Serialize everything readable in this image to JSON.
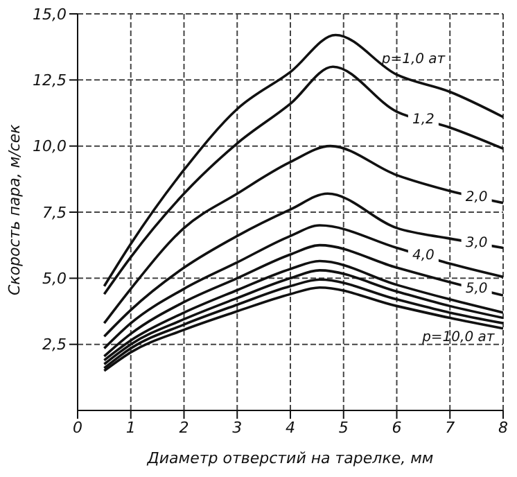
{
  "chart_data": {
    "type": "line",
    "xlabel": "Диаметр отверстий на тарелке, мм",
    "ylabel": "Скорость пара, м/сек",
    "xlim": [
      0,
      8
    ],
    "xticks": [
      0,
      1,
      2,
      3,
      4,
      5,
      6,
      7,
      8
    ],
    "ylim": [
      0,
      15
    ],
    "yticks": [
      {
        "value": 2.5,
        "label": "2,5"
      },
      {
        "value": 5,
        "label": "5,0"
      },
      {
        "value": 7.5,
        "label": "7,5"
      },
      {
        "value": 10,
        "label": "10,0"
      },
      {
        "value": 12.5,
        "label": "12,5"
      },
      {
        "value": 15,
        "label": "15,0"
      }
    ],
    "grid": true,
    "marker": "none",
    "line_style": "solid",
    "series": [
      {
        "name": "р=1,0 ат",
        "color": "#111111",
        "x": [
          0.5,
          1,
          2,
          3,
          4,
          4.85,
          6,
          7,
          8
        ],
        "values": [
          4.7,
          6.3,
          9.1,
          11.4,
          12.8,
          14.2,
          12.7,
          12.05,
          11.1
        ]
      },
      {
        "name": "1,2",
        "color": "#111111",
        "x": [
          0.5,
          1,
          2,
          3,
          4,
          4.8,
          6,
          7,
          8
        ],
        "values": [
          4.4,
          5.8,
          8.2,
          10.1,
          11.6,
          13.0,
          11.3,
          10.7,
          9.9
        ]
      },
      {
        "name": "2,0",
        "color": "#111111",
        "x": [
          0.5,
          1,
          2,
          3,
          4,
          4.75,
          6,
          7,
          8
        ],
        "values": [
          3.3,
          4.6,
          6.9,
          8.2,
          9.4,
          10.0,
          8.9,
          8.3,
          7.85
        ]
      },
      {
        "name": "3,0",
        "color": "#111111",
        "x": [
          0.5,
          1,
          2,
          3,
          4,
          4.7,
          6,
          7,
          8
        ],
        "values": [
          2.8,
          3.8,
          5.4,
          6.6,
          7.6,
          8.2,
          6.9,
          6.5,
          6.15
        ]
      },
      {
        "name": "4,0",
        "color": "#111111",
        "x": [
          0.5,
          1,
          2,
          3,
          4,
          4.55,
          6,
          7,
          8
        ],
        "values": [
          2.35,
          3.3,
          4.6,
          5.6,
          6.6,
          7.0,
          6.15,
          5.55,
          5.05
        ]
      },
      {
        "name": "5,0",
        "color": "#111111",
        "x": [
          0.5,
          1,
          2,
          3,
          4,
          4.55,
          6,
          7,
          8
        ],
        "values": [
          2.05,
          2.9,
          4.1,
          5.0,
          5.9,
          6.25,
          5.4,
          4.85,
          4.35
        ]
      },
      {
        "color": "#111111",
        "x": [
          0.5,
          1,
          2,
          3,
          4,
          4.55,
          6,
          7,
          8
        ],
        "values": [
          1.9,
          2.65,
          3.7,
          4.55,
          5.35,
          5.65,
          4.75,
          4.2,
          3.7
        ]
      },
      {
        "color": "#111111",
        "x": [
          0.5,
          1,
          2,
          3,
          4,
          4.55,
          6,
          7,
          8
        ],
        "values": [
          1.75,
          2.5,
          3.45,
          4.25,
          5.0,
          5.3,
          4.5,
          3.95,
          3.5
        ]
      },
      {
        "color": "#111111",
        "x": [
          0.5,
          1,
          2,
          3,
          4,
          4.55,
          6,
          7,
          8
        ],
        "values": [
          1.6,
          2.35,
          3.25,
          4.0,
          4.7,
          4.95,
          4.2,
          3.7,
          3.3
        ]
      },
      {
        "name": "р=10,0 ат",
        "color": "#111111",
        "x": [
          0.5,
          1,
          2,
          3,
          4,
          4.55,
          6,
          7,
          8
        ],
        "values": [
          1.5,
          2.2,
          3.05,
          3.75,
          4.4,
          4.65,
          3.95,
          3.5,
          3.1
        ]
      }
    ]
  }
}
